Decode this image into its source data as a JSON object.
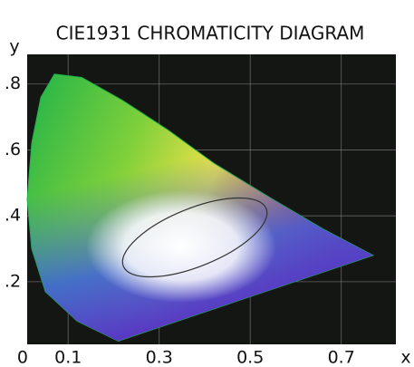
{
  "chart_data": {
    "type": "area",
    "title": "CIE1931 CHROMATICITY DIAGRAM",
    "x_label": "x",
    "y_label": "y",
    "x": [
      0.21,
      0.12,
      0.05,
      0.02,
      0.01,
      0.02,
      0.04,
      0.07,
      0.13,
      0.22,
      0.32,
      0.42,
      0.55,
      0.66,
      0.77
    ],
    "values": [
      0.02,
      0.08,
      0.17,
      0.3,
      0.45,
      0.62,
      0.76,
      0.83,
      0.82,
      0.75,
      0.66,
      0.56,
      0.45,
      0.36,
      0.28
    ],
    "color": "#1fb34a",
    "xlim": [
      0.01,
      0.82
    ],
    "ylim": [
      0.01,
      0.89
    ],
    "xticks": [
      0,
      0.1,
      0.3,
      0.5,
      0.7
    ],
    "yticks": [
      {
        "value": 0.2,
        "label": ".2"
      },
      {
        "value": 0.4,
        "label": ".4"
      },
      {
        "value": 0.6,
        "label": ".6"
      },
      {
        "value": 0.8,
        "label": ".8"
      }
    ],
    "grid": true
  }
}
